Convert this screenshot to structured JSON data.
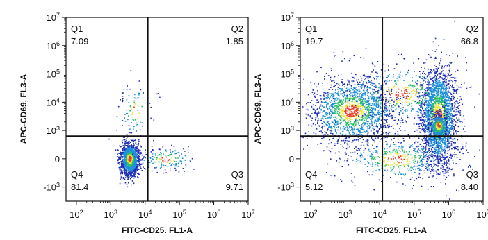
{
  "chart_data": [
    {
      "type": "scatter",
      "subtype": "flow-cytometry-density-dot-plot",
      "xlabel": "FITC-CD25. FL1-A",
      "ylabel": "APC-CD69, FL3-A",
      "x_scale": "biexponential",
      "y_scale": "biexponential",
      "xlim": [
        50,
        10000000
      ],
      "ylim": [
        -1500,
        10000000
      ],
      "x_ticks": [
        "10²",
        "10³",
        "10⁴",
        "10⁵",
        "10⁶",
        "10⁷"
      ],
      "y_ticks": [
        "10⁷",
        "10⁶",
        "10⁵",
        "10⁴",
        "10³",
        "0",
        "-10³"
      ],
      "gate": {
        "x": 12000,
        "y": 800
      },
      "quadrants": [
        {
          "name": "Q1",
          "percent": "7.09"
        },
        {
          "name": "Q2",
          "percent": "1.85"
        },
        {
          "name": "Q3",
          "percent": "9.71"
        },
        {
          "name": "Q4",
          "percent": "81.4"
        }
      ],
      "populations": [
        {
          "x_center": 3500,
          "y_center": 0,
          "spread": "tight",
          "density": "high"
        }
      ],
      "grid": false,
      "colormap": [
        "#1f2fb4",
        "#1e8fd8",
        "#2dbf6a",
        "#f0e442",
        "#e8412c"
      ]
    },
    {
      "type": "scatter",
      "subtype": "flow-cytometry-density-dot-plot",
      "xlabel": "FITC-CD25. FL1-A",
      "ylabel": "APC-CD69, FL3-A",
      "x_scale": "biexponential",
      "y_scale": "biexponential",
      "xlim": [
        50,
        10000000
      ],
      "ylim": [
        -1500,
        10000000
      ],
      "x_ticks": [
        "10²",
        "10³",
        "10⁴",
        "10⁵",
        "10⁶",
        "10⁷"
      ],
      "y_ticks": [
        "10⁷",
        "10⁶",
        "10⁵",
        "10⁴",
        "10³",
        "0",
        "-10³"
      ],
      "gate": {
        "x": 12000,
        "y": 800
      },
      "quadrants": [
        {
          "name": "Q1",
          "percent": "19.7"
        },
        {
          "name": "Q2",
          "percent": "66.8"
        },
        {
          "name": "Q3",
          "percent": "8.40"
        },
        {
          "name": "Q4",
          "percent": "5.12"
        }
      ],
      "populations": [
        {
          "x_center": 1500,
          "y_center": 5000,
          "spread": "wide",
          "density": "medium"
        },
        {
          "x_center": 500000,
          "y_center": 3000,
          "spread": "wide",
          "density": "high"
        }
      ],
      "grid": false,
      "colormap": [
        "#1f2fb4",
        "#1e8fd8",
        "#2dbf6a",
        "#f0e442",
        "#e8412c"
      ]
    }
  ]
}
